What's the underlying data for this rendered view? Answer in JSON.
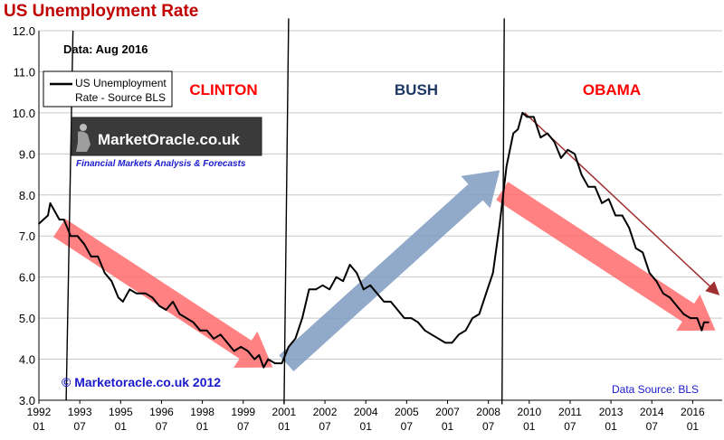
{
  "title": "US Unemployment Rate",
  "data_note": "Data: Aug 2016",
  "legend_label_line1": "US Unemployment",
  "legend_label_line2": "Rate - Source BLS",
  "logo_text": "MarketOracle.co.uk",
  "logo_tagline": "Financial Markets Analysis & Forecasts",
  "copyright": "© Marketoracle.co.uk 2012",
  "source": "Data Source: BLS",
  "colors": {
    "title": "#c00000",
    "clinton": "#ff0000",
    "bush": "#1f3864",
    "obama": "#ff0000",
    "series": "#000000",
    "trend_down": "#ff6b6b",
    "trend_up": "#7f9bbf",
    "trend_thin": "#a03030",
    "copyright": "#1a1acc",
    "source": "#1a1acc",
    "tagline": "#1a1acc"
  },
  "chart_data": {
    "type": "line",
    "title": "US Unemployment Rate",
    "xlabel": "",
    "ylabel": "",
    "ylim": [
      3.0,
      12.0
    ],
    "xlim": [
      "1992-01",
      "2017-02"
    ],
    "grid": true,
    "legend": "top-left",
    "y_ticks": [
      "3.0",
      "4.0",
      "5.0",
      "6.0",
      "7.0",
      "8.0",
      "9.0",
      "10.0",
      "11.0",
      "12.0"
    ],
    "x_ticks": [
      {
        "year": "1992",
        "month": "01",
        "t": "1992-01"
      },
      {
        "year": "1993",
        "month": "07",
        "t": "1993-07"
      },
      {
        "year": "1995",
        "month": "01",
        "t": "1995-01"
      },
      {
        "year": "1996",
        "month": "07",
        "t": "1996-07"
      },
      {
        "year": "1998",
        "month": "01",
        "t": "1998-01"
      },
      {
        "year": "1999",
        "month": "07",
        "t": "1999-07"
      },
      {
        "year": "2001",
        "month": "01",
        "t": "2001-01"
      },
      {
        "year": "2002",
        "month": "07",
        "t": "2002-07"
      },
      {
        "year": "2004",
        "month": "01",
        "t": "2004-01"
      },
      {
        "year": "2005",
        "month": "07",
        "t": "2005-07"
      },
      {
        "year": "2007",
        "month": "01",
        "t": "2007-01"
      },
      {
        "year": "2008",
        "month": "07",
        "t": "2008-07"
      },
      {
        "year": "2010",
        "month": "01",
        "t": "2010-01"
      },
      {
        "year": "2011",
        "month": "07",
        "t": "2011-07"
      },
      {
        "year": "2013",
        "month": "01",
        "t": "2013-01"
      },
      {
        "year": "2014",
        "month": "07",
        "t": "2014-07"
      },
      {
        "year": "2016",
        "month": "01",
        "t": "2016-01"
      }
    ],
    "eras": [
      {
        "label": "CLINTON",
        "start": "1993-01"
      },
      {
        "label": "BUSH",
        "start": "2001-01"
      },
      {
        "label": "OBAMA",
        "start": "2009-01"
      }
    ],
    "series": [
      {
        "name": "US Unemployment Rate - Source BLS",
        "points": [
          [
            "1992-01",
            7.3
          ],
          [
            "1992-03",
            7.4
          ],
          [
            "1992-05",
            7.5
          ],
          [
            "1992-06",
            7.8
          ],
          [
            "1992-08",
            7.6
          ],
          [
            "1992-10",
            7.4
          ],
          [
            "1992-12",
            7.4
          ],
          [
            "1993-03",
            7.0
          ],
          [
            "1993-06",
            7.0
          ],
          [
            "1993-09",
            6.8
          ],
          [
            "1993-12",
            6.5
          ],
          [
            "1994-03",
            6.5
          ],
          [
            "1994-06",
            6.1
          ],
          [
            "1994-09",
            5.9
          ],
          [
            "1994-12",
            5.5
          ],
          [
            "1995-02",
            5.4
          ],
          [
            "1995-05",
            5.7
          ],
          [
            "1995-08",
            5.6
          ],
          [
            "1995-12",
            5.6
          ],
          [
            "1996-03",
            5.5
          ],
          [
            "1996-06",
            5.3
          ],
          [
            "1996-09",
            5.2
          ],
          [
            "1996-12",
            5.4
          ],
          [
            "1997-03",
            5.1
          ],
          [
            "1997-06",
            5.0
          ],
          [
            "1997-09",
            4.9
          ],
          [
            "1997-12",
            4.7
          ],
          [
            "1998-03",
            4.7
          ],
          [
            "1998-06",
            4.5
          ],
          [
            "1998-09",
            4.6
          ],
          [
            "1998-12",
            4.4
          ],
          [
            "1999-03",
            4.2
          ],
          [
            "1999-06",
            4.3
          ],
          [
            "1999-09",
            4.2
          ],
          [
            "1999-12",
            4.0
          ],
          [
            "2000-02",
            4.1
          ],
          [
            "2000-04",
            3.8
          ],
          [
            "2000-06",
            4.0
          ],
          [
            "2000-09",
            3.9
          ],
          [
            "2000-12",
            3.9
          ],
          [
            "2001-03",
            4.3
          ],
          [
            "2001-06",
            4.5
          ],
          [
            "2001-09",
            5.0
          ],
          [
            "2001-12",
            5.7
          ],
          [
            "2002-03",
            5.7
          ],
          [
            "2002-06",
            5.8
          ],
          [
            "2002-09",
            5.7
          ],
          [
            "2002-12",
            6.0
          ],
          [
            "2003-03",
            5.9
          ],
          [
            "2003-06",
            6.3
          ],
          [
            "2003-09",
            6.1
          ],
          [
            "2003-12",
            5.7
          ],
          [
            "2004-03",
            5.8
          ],
          [
            "2004-06",
            5.6
          ],
          [
            "2004-09",
            5.4
          ],
          [
            "2004-12",
            5.4
          ],
          [
            "2005-03",
            5.2
          ],
          [
            "2005-06",
            5.0
          ],
          [
            "2005-09",
            5.0
          ],
          [
            "2005-12",
            4.9
          ],
          [
            "2006-03",
            4.7
          ],
          [
            "2006-06",
            4.6
          ],
          [
            "2006-09",
            4.5
          ],
          [
            "2006-12",
            4.4
          ],
          [
            "2007-03",
            4.4
          ],
          [
            "2007-06",
            4.6
          ],
          [
            "2007-09",
            4.7
          ],
          [
            "2007-12",
            5.0
          ],
          [
            "2008-03",
            5.1
          ],
          [
            "2008-06",
            5.6
          ],
          [
            "2008-09",
            6.1
          ],
          [
            "2008-12",
            7.3
          ],
          [
            "2009-03",
            8.7
          ],
          [
            "2009-06",
            9.5
          ],
          [
            "2009-08",
            9.6
          ],
          [
            "2009-10",
            10.0
          ],
          [
            "2009-12",
            9.9
          ],
          [
            "2010-03",
            9.9
          ],
          [
            "2010-06",
            9.4
          ],
          [
            "2010-09",
            9.5
          ],
          [
            "2010-12",
            9.3
          ],
          [
            "2011-03",
            8.9
          ],
          [
            "2011-06",
            9.1
          ],
          [
            "2011-09",
            9.0
          ],
          [
            "2011-12",
            8.5
          ],
          [
            "2012-03",
            8.2
          ],
          [
            "2012-06",
            8.2
          ],
          [
            "2012-09",
            7.8
          ],
          [
            "2012-12",
            7.9
          ],
          [
            "2013-03",
            7.5
          ],
          [
            "2013-06",
            7.5
          ],
          [
            "2013-09",
            7.2
          ],
          [
            "2013-12",
            6.7
          ],
          [
            "2014-03",
            6.6
          ],
          [
            "2014-06",
            6.1
          ],
          [
            "2014-09",
            5.9
          ],
          [
            "2014-12",
            5.6
          ],
          [
            "2015-03",
            5.5
          ],
          [
            "2015-06",
            5.3
          ],
          [
            "2015-09",
            5.1
          ],
          [
            "2015-12",
            5.0
          ],
          [
            "2016-03",
            5.0
          ],
          [
            "2016-05",
            4.7
          ],
          [
            "2016-06",
            4.9
          ],
          [
            "2016-08",
            4.9
          ]
        ]
      }
    ]
  }
}
